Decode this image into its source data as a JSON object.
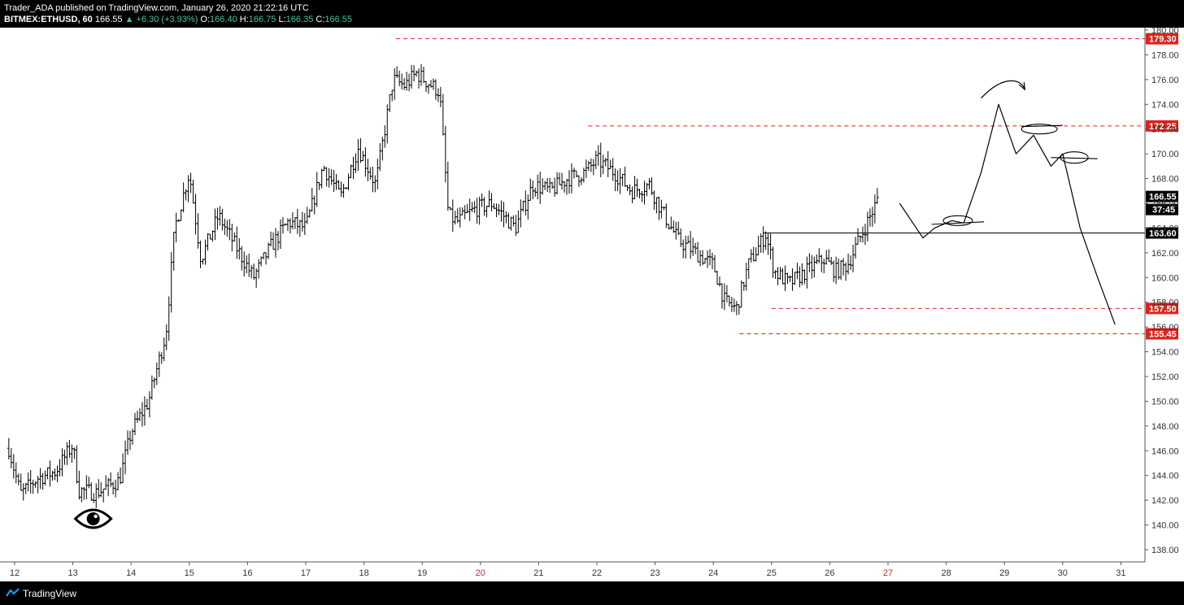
{
  "header": {
    "published": "Trader_ADA published on TradingView.com, January 26, 2020 21:22:16 UTC",
    "symbol": "BITMEX:ETHUSD, 60",
    "last": "166.55",
    "change": "▲ +6.30 (+3.93%)",
    "o_label": "O:",
    "o": "166.40",
    "h_label": "H:",
    "h": "166.75",
    "l_label": "L:",
    "l": "166.35",
    "c_label": "C:",
    "c": "166.55"
  },
  "footer": {
    "brand": "TradingView"
  },
  "colors": {
    "up": "#3ec6a0",
    "bar": "#000000",
    "level": "#e0211d",
    "axis_text": "#333333",
    "weekend_day": "#c62828",
    "bg": "#ffffff"
  },
  "icons": {
    "eye": "eye-icon",
    "logo": "tradingview-logo-icon"
  },
  "chart_data": {
    "type": "ohlc",
    "symbol": "BITMEX:ETHUSD",
    "interval": "60",
    "y_range": [
      137,
      180.5
    ],
    "y_ticks": [
      "138.00",
      "140.00",
      "142.00",
      "144.00",
      "146.00",
      "148.00",
      "150.00",
      "152.00",
      "154.00",
      "156.00",
      "158.00",
      "160.00",
      "162.00",
      "164.00",
      "166.00",
      "168.00",
      "170.00",
      "172.00",
      "174.00",
      "176.00",
      "178.00",
      "180.00"
    ],
    "x_ticks": [
      {
        "day": 12,
        "label": "12",
        "weekend": false
      },
      {
        "day": 13,
        "label": "13",
        "weekend": false
      },
      {
        "day": 14,
        "label": "14",
        "weekend": false
      },
      {
        "day": 15,
        "label": "15",
        "weekend": false
      },
      {
        "day": 16,
        "label": "16",
        "weekend": false
      },
      {
        "day": 17,
        "label": "17",
        "weekend": false
      },
      {
        "day": 18,
        "label": "18",
        "weekend": false
      },
      {
        "day": 19,
        "label": "19",
        "weekend": false
      },
      {
        "day": 20,
        "label": "20",
        "weekend": true
      },
      {
        "day": 21,
        "label": "21",
        "weekend": false
      },
      {
        "day": 22,
        "label": "22",
        "weekend": false
      },
      {
        "day": 23,
        "label": "23",
        "weekend": false
      },
      {
        "day": 24,
        "label": "24",
        "weekend": false
      },
      {
        "day": 25,
        "label": "25",
        "weekend": false
      },
      {
        "day": 26,
        "label": "26",
        "weekend": false
      },
      {
        "day": 27,
        "label": "27",
        "weekend": true
      },
      {
        "day": 28,
        "label": "28",
        "weekend": false
      },
      {
        "day": 29,
        "label": "29",
        "weekend": false
      },
      {
        "day": 30,
        "label": "30",
        "weekend": false
      },
      {
        "day": 31,
        "label": "31",
        "weekend": false
      }
    ],
    "price_path": [
      [
        11.9,
        146.2
      ],
      [
        12.1,
        142.5
      ],
      [
        12.4,
        143.8
      ],
      [
        12.7,
        144.3
      ],
      [
        13.0,
        146.5
      ],
      [
        13.1,
        142.8
      ],
      [
        13.4,
        142.6
      ],
      [
        13.8,
        143.6
      ],
      [
        14.0,
        147.5
      ],
      [
        14.3,
        150.0
      ],
      [
        14.6,
        155.5
      ],
      [
        14.75,
        164.0
      ],
      [
        15.0,
        168.5
      ],
      [
        15.2,
        161.5
      ],
      [
        15.5,
        165.0
      ],
      [
        15.8,
        162.5
      ],
      [
        16.1,
        160.0
      ],
      [
        16.4,
        162.5
      ],
      [
        16.7,
        164.5
      ],
      [
        17.0,
        164.0
      ],
      [
        17.3,
        169.0
      ],
      [
        17.6,
        166.5
      ],
      [
        17.9,
        170.5
      ],
      [
        18.2,
        167.5
      ],
      [
        18.5,
        176.0
      ],
      [
        18.7,
        175.5
      ],
      [
        18.9,
        176.5
      ],
      [
        19.3,
        175.0
      ],
      [
        19.45,
        165.0
      ],
      [
        19.6,
        164.5
      ],
      [
        19.9,
        165.5
      ],
      [
        20.2,
        166.0
      ],
      [
        20.6,
        164.0
      ],
      [
        20.9,
        167.5
      ],
      [
        21.2,
        167.0
      ],
      [
        21.5,
        168.0
      ],
      [
        21.8,
        168.5
      ],
      [
        22.0,
        169.5
      ],
      [
        22.3,
        168.5
      ],
      [
        22.6,
        167.0
      ],
      [
        22.9,
        167.5
      ],
      [
        23.1,
        165.5
      ],
      [
        23.4,
        163.0
      ],
      [
        23.7,
        162.0
      ],
      [
        24.0,
        161.0
      ],
      [
        24.2,
        158.0
      ],
      [
        24.4,
        157.5
      ],
      [
        24.6,
        161.0
      ],
      [
        24.9,
        163.5
      ],
      [
        25.05,
        160.5
      ],
      [
        25.3,
        159.5
      ],
      [
        25.6,
        160.5
      ],
      [
        25.9,
        161.5
      ],
      [
        26.1,
        160.5
      ],
      [
        26.3,
        161.0
      ],
      [
        26.5,
        163.0
      ],
      [
        26.7,
        165.0
      ],
      [
        26.85,
        166.55
      ]
    ],
    "levels": [
      {
        "price": 179.3,
        "label": "179.30",
        "style": "dashed",
        "start_day": 18.55
      },
      {
        "price": 172.25,
        "label": "172.25",
        "style": "dashed",
        "start_day": 21.85
      },
      {
        "price": 163.6,
        "label": "163.60",
        "style": "solid",
        "start_day": 24.85
      },
      {
        "price": 157.5,
        "label": "157.50",
        "style": "dashed",
        "start_day": 25.0
      },
      {
        "price": 155.45,
        "label": "155.45",
        "style": "dashed",
        "start_day": 24.45
      }
    ],
    "current_price": {
      "price": 166.55,
      "label": "166.55",
      "countdown": "37:45"
    },
    "drawings": [
      {
        "type": "projected_path",
        "points": [
          [
            27.2,
            166.0
          ],
          [
            27.6,
            163.2
          ],
          [
            27.8,
            164.0
          ],
          [
            28.1,
            164.6
          ],
          [
            28.3,
            164.4
          ],
          [
            28.6,
            168.5
          ],
          [
            28.9,
            174.0
          ],
          [
            29.2,
            170.0
          ],
          [
            29.5,
            171.5
          ],
          [
            29.8,
            169.0
          ],
          [
            30.0,
            170.0
          ],
          [
            30.3,
            164.0
          ],
          [
            30.6,
            160.0
          ],
          [
            30.9,
            156.2
          ]
        ]
      },
      {
        "type": "curved_arrow",
        "points": [
          [
            28.6,
            174.5
          ],
          [
            29.0,
            176.5
          ],
          [
            29.3,
            176.0
          ],
          [
            29.35,
            175.2
          ]
        ]
      }
    ]
  }
}
